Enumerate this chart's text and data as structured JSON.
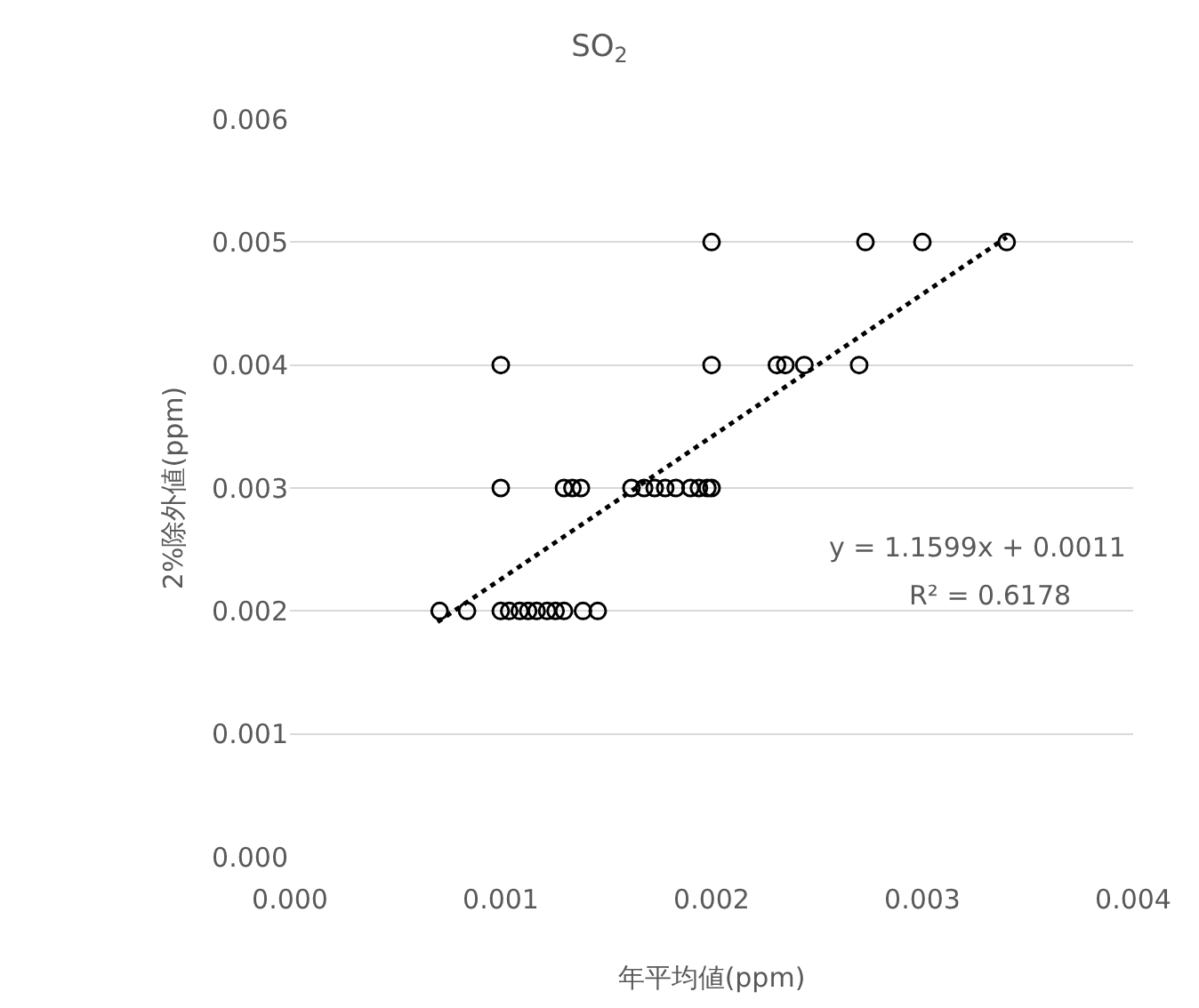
{
  "chart_data": {
    "type": "scatter",
    "title": "SO$_{2}$",
    "xlabel": "年平均値(ppm)",
    "ylabel": "2%除外値(ppm)",
    "xlim": [
      0,
      0.004
    ],
    "xticks": [
      {
        "value": 0,
        "label": "0.000"
      },
      {
        "value": 0.001,
        "label": "0.001"
      },
      {
        "value": 0.002,
        "label": "0.002"
      },
      {
        "value": 0.003,
        "label": "0.003"
      },
      {
        "value": 0.004,
        "label": "0.004"
      }
    ],
    "ylim": [
      0,
      0.006
    ],
    "yticks": [
      {
        "value": 0,
        "label": "0.000"
      },
      {
        "value": 0.001,
        "label": "0.001"
      },
      {
        "value": 0.002,
        "label": "0.002"
      },
      {
        "value": 0.003,
        "label": "0.003"
      },
      {
        "value": 0.004,
        "label": "0.004"
      },
      {
        "value": 0.005,
        "label": "0.005"
      },
      {
        "value": 0.006,
        "label": "0.006"
      }
    ],
    "grid": "y",
    "marker": "circle",
    "series": [
      {
        "color": "#000000",
        "x": [
          0.002,
          0.00273,
          0.003,
          0.0034,
          0.001,
          0.002,
          0.00231,
          0.00235,
          0.00244,
          0.0027,
          0.001,
          0.0013,
          0.00134,
          0.00138,
          0.00162,
          0.00168,
          0.00173,
          0.00178,
          0.00183,
          0.0019,
          0.00194,
          0.00198,
          0.002,
          0.00071,
          0.00084,
          0.001,
          0.00104,
          0.00109,
          0.00113,
          0.00117,
          0.00122,
          0.00126,
          0.0013,
          0.00139,
          0.00146
        ],
        "values": [
          0.005,
          0.005,
          0.005,
          0.005,
          0.004,
          0.004,
          0.004,
          0.004,
          0.004,
          0.004,
          0.003,
          0.003,
          0.003,
          0.003,
          0.003,
          0.003,
          0.003,
          0.003,
          0.003,
          0.003,
          0.003,
          0.003,
          0.003,
          0.002,
          0.002,
          0.002,
          0.002,
          0.002,
          0.002,
          0.002,
          0.002,
          0.002,
          0.002,
          0.002,
          0.002
        ]
      },
      {
        "type": "line",
        "color": "#000000",
        "line_style": "dotted",
        "marker": "none",
        "x": [
          0.0007,
          0.0034
        ],
        "values": [
          0.00191,
          0.00504
        ]
      }
    ],
    "annotations": [
      "y = 1.1599x + 0.0011",
      "R² = 0.6178"
    ]
  }
}
